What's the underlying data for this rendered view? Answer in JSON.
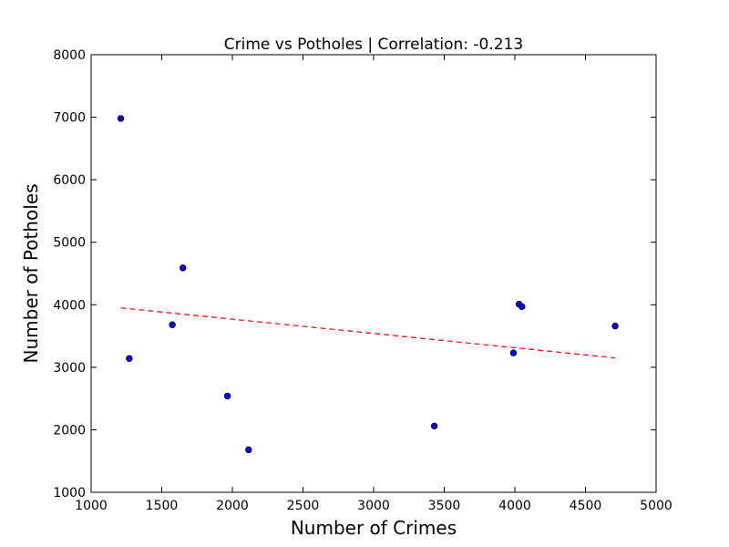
{
  "chart_data": {
    "type": "scatter",
    "title": "Crime vs Potholes | Correlation: -0.213",
    "xlabel": "Number of Crimes",
    "ylabel": "Number of Potholes",
    "xlim": [
      1000,
      5000
    ],
    "ylim": [
      1000,
      8000
    ],
    "xticks": [
      1000,
      1500,
      2000,
      2500,
      3000,
      3500,
      4000,
      4500,
      5000
    ],
    "yticks": [
      1000,
      2000,
      3000,
      4000,
      5000,
      6000,
      7000,
      8000
    ],
    "grid": false,
    "points": [
      {
        "x": 1210,
        "y": 6980
      },
      {
        "x": 1270,
        "y": 3140
      },
      {
        "x": 1575,
        "y": 3680
      },
      {
        "x": 1650,
        "y": 4590
      },
      {
        "x": 1965,
        "y": 2540
      },
      {
        "x": 2115,
        "y": 1680
      },
      {
        "x": 3430,
        "y": 2060
      },
      {
        "x": 3990,
        "y": 3230
      },
      {
        "x": 4030,
        "y": 4010
      },
      {
        "x": 4050,
        "y": 3970
      },
      {
        "x": 4710,
        "y": 3660
      }
    ],
    "trendline": {
      "style": "dashed",
      "color": "#ff0000",
      "x": [
        1210,
        4710
      ],
      "y": [
        3950,
        3150
      ]
    },
    "marker_color": "#0000ff"
  }
}
